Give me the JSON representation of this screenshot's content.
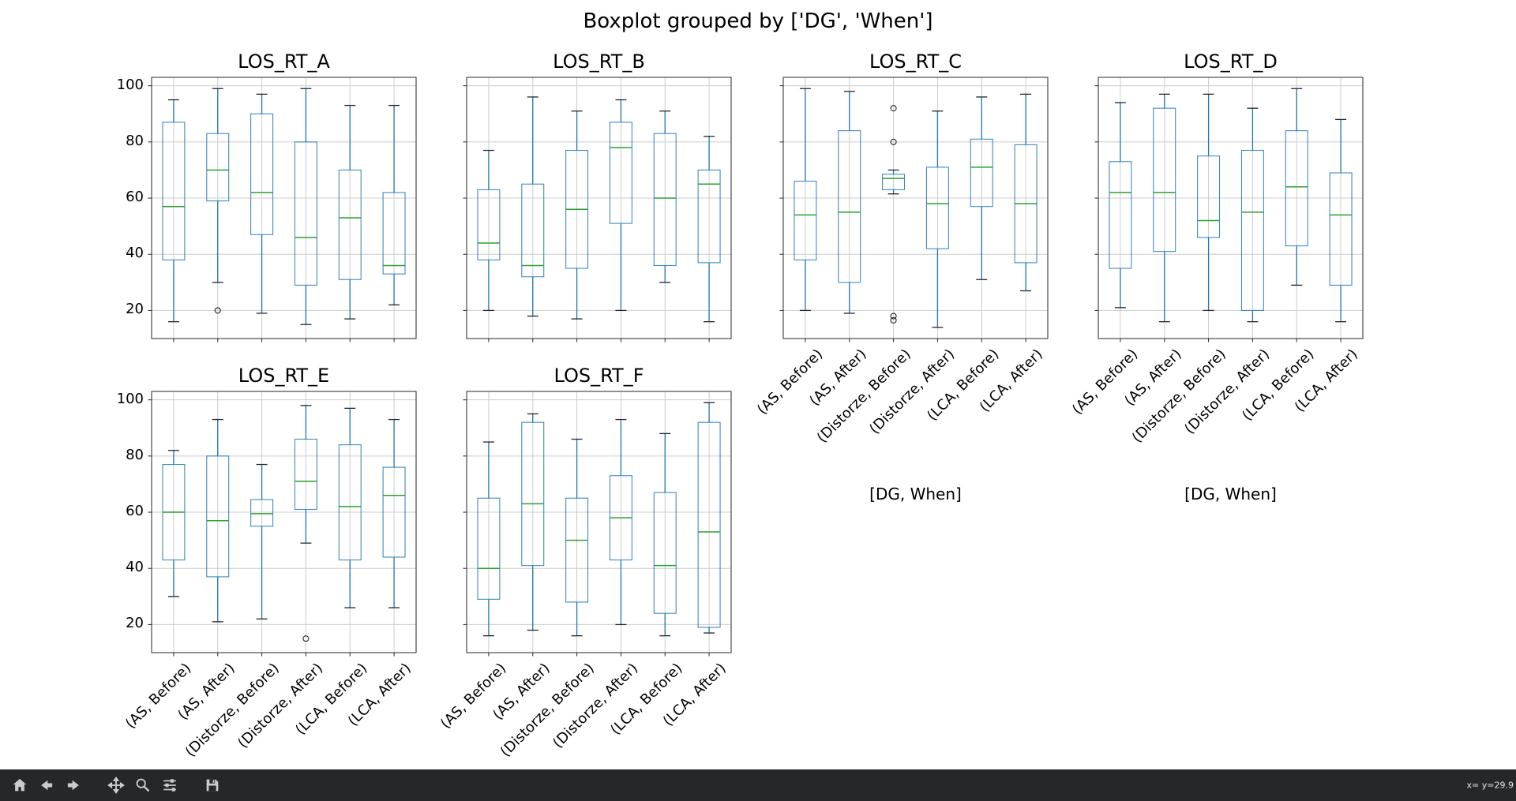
{
  "window": {
    "background": "#ffffff",
    "toolbar": {
      "background": "#26272b",
      "icon_color": "#c9ccd1",
      "icons": [
        "home-icon",
        "back-icon",
        "forward-icon",
        "pan-icon",
        "zoom-icon",
        "subplots-icon",
        "save-icon"
      ],
      "status_text": "x= y=29.9"
    }
  },
  "chart_data": {
    "type": "boxplot",
    "figure_title": "Boxplot grouped by ['DG', 'When']",
    "xlabel": "[DG, When]",
    "categories": [
      "(AS, Before)",
      "(AS, After)",
      "(Distorze, Before)",
      "(Distorze, After)",
      "(LCA, Before)",
      "(LCA, After)"
    ],
    "yticks": [
      20,
      40,
      60,
      80,
      100
    ],
    "ylim": [
      10,
      103
    ],
    "grid": true,
    "legend": "none",
    "colors": {
      "box": "#1f77b4",
      "whisker": "#1f77b4",
      "median": "#2ca02c",
      "cap": "#262626",
      "outlier": "#262626",
      "grid": "#cccccc",
      "axis": "#262626"
    },
    "subplots": [
      {
        "title": "LOS_RT_A",
        "show_yticklabels": true,
        "show_xticklabels": false,
        "show_xlabel": false,
        "boxes": [
          {
            "whislo": 16,
            "q1": 38,
            "med": 57,
            "q3": 87,
            "whishi": 95,
            "fliers": []
          },
          {
            "whislo": 30,
            "q1": 59,
            "med": 70,
            "q3": 83,
            "whishi": 99,
            "fliers": [
              20
            ]
          },
          {
            "whislo": 19,
            "q1": 47,
            "med": 62,
            "q3": 90,
            "whishi": 97,
            "fliers": []
          },
          {
            "whislo": 15,
            "q1": 29,
            "med": 46,
            "q3": 80,
            "whishi": 99,
            "fliers": []
          },
          {
            "whislo": 17,
            "q1": 31,
            "med": 53,
            "q3": 70,
            "whishi": 93,
            "fliers": []
          },
          {
            "whislo": 22,
            "q1": 33,
            "med": 36,
            "q3": 62,
            "whishi": 93,
            "fliers": []
          }
        ]
      },
      {
        "title": "LOS_RT_B",
        "show_yticklabels": false,
        "show_xticklabels": false,
        "show_xlabel": false,
        "boxes": [
          {
            "whislo": 20,
            "q1": 38,
            "med": 44,
            "q3": 63,
            "whishi": 77,
            "fliers": []
          },
          {
            "whislo": 18,
            "q1": 32,
            "med": 36,
            "q3": 65,
            "whishi": 96,
            "fliers": []
          },
          {
            "whislo": 17,
            "q1": 35,
            "med": 56,
            "q3": 77,
            "whishi": 91,
            "fliers": []
          },
          {
            "whislo": 20,
            "q1": 51,
            "med": 78,
            "q3": 87,
            "whishi": 95,
            "fliers": []
          },
          {
            "whislo": 30,
            "q1": 36,
            "med": 60,
            "q3": 83,
            "whishi": 91,
            "fliers": []
          },
          {
            "whislo": 16,
            "q1": 37,
            "med": 65,
            "q3": 70,
            "whishi": 82,
            "fliers": []
          }
        ]
      },
      {
        "title": "LOS_RT_C",
        "show_yticklabels": false,
        "show_xticklabels": true,
        "show_xlabel": true,
        "boxes": [
          {
            "whislo": 20,
            "q1": 38,
            "med": 54,
            "q3": 66,
            "whishi": 99,
            "fliers": []
          },
          {
            "whislo": 19,
            "q1": 30,
            "med": 55,
            "q3": 84,
            "whishi": 98,
            "fliers": []
          },
          {
            "whislo": 61.5,
            "q1": 63,
            "med": 67,
            "q3": 68.5,
            "whishi": 70,
            "fliers": [
              92,
              80,
              18,
              16.5
            ]
          },
          {
            "whislo": 14,
            "q1": 42,
            "med": 58,
            "q3": 71,
            "whishi": 91,
            "fliers": []
          },
          {
            "whislo": 31,
            "q1": 57,
            "med": 71,
            "q3": 81,
            "whishi": 96,
            "fliers": []
          },
          {
            "whislo": 27,
            "q1": 37,
            "med": 58,
            "q3": 79,
            "whishi": 97,
            "fliers": []
          }
        ]
      },
      {
        "title": "LOS_RT_D",
        "show_yticklabels": false,
        "show_xticklabels": true,
        "show_xlabel": true,
        "boxes": [
          {
            "whislo": 21,
            "q1": 35,
            "med": 62,
            "q3": 73,
            "whishi": 94,
            "fliers": []
          },
          {
            "whislo": 16,
            "q1": 41,
            "med": 62,
            "q3": 92,
            "whishi": 97,
            "fliers": []
          },
          {
            "whislo": 20,
            "q1": 46,
            "med": 52,
            "q3": 75,
            "whishi": 97,
            "fliers": []
          },
          {
            "whislo": 16,
            "q1": 20,
            "med": 55,
            "q3": 77,
            "whishi": 92,
            "fliers": []
          },
          {
            "whislo": 29,
            "q1": 43,
            "med": 64,
            "q3": 84,
            "whishi": 99,
            "fliers": []
          },
          {
            "whislo": 16,
            "q1": 29,
            "med": 54,
            "q3": 69,
            "whishi": 88,
            "fliers": []
          }
        ]
      },
      {
        "title": "LOS_RT_E",
        "show_yticklabels": true,
        "show_xticklabels": true,
        "show_xlabel": false,
        "boxes": [
          {
            "whislo": 30,
            "q1": 43,
            "med": 60,
            "q3": 77,
            "whishi": 82,
            "fliers": []
          },
          {
            "whislo": 21,
            "q1": 37,
            "med": 57,
            "q3": 80,
            "whishi": 93,
            "fliers": []
          },
          {
            "whislo": 22,
            "q1": 55,
            "med": 59.5,
            "q3": 64.5,
            "whishi": 77,
            "fliers": []
          },
          {
            "whislo": 49,
            "q1": 61,
            "med": 71,
            "q3": 86,
            "whishi": 98,
            "fliers": [
              15
            ]
          },
          {
            "whislo": 26,
            "q1": 43,
            "med": 62,
            "q3": 84,
            "whishi": 97,
            "fliers": []
          },
          {
            "whislo": 26,
            "q1": 44,
            "med": 66,
            "q3": 76,
            "whishi": 93,
            "fliers": []
          }
        ]
      },
      {
        "title": "LOS_RT_F",
        "show_yticklabels": false,
        "show_xticklabels": true,
        "show_xlabel": false,
        "boxes": [
          {
            "whislo": 16,
            "q1": 29,
            "med": 40,
            "q3": 65,
            "whishi": 85,
            "fliers": []
          },
          {
            "whislo": 18,
            "q1": 41,
            "med": 63,
            "q3": 92,
            "whishi": 95,
            "fliers": []
          },
          {
            "whislo": 16,
            "q1": 28,
            "med": 50,
            "q3": 65,
            "whishi": 86,
            "fliers": []
          },
          {
            "whislo": 20,
            "q1": 43,
            "med": 58,
            "q3": 73,
            "whishi": 93,
            "fliers": []
          },
          {
            "whislo": 16,
            "q1": 24,
            "med": 41,
            "q3": 67,
            "whishi": 88,
            "fliers": []
          },
          {
            "whislo": 17,
            "q1": 19,
            "med": 53,
            "q3": 92,
            "whishi": 99,
            "fliers": []
          }
        ]
      }
    ]
  }
}
